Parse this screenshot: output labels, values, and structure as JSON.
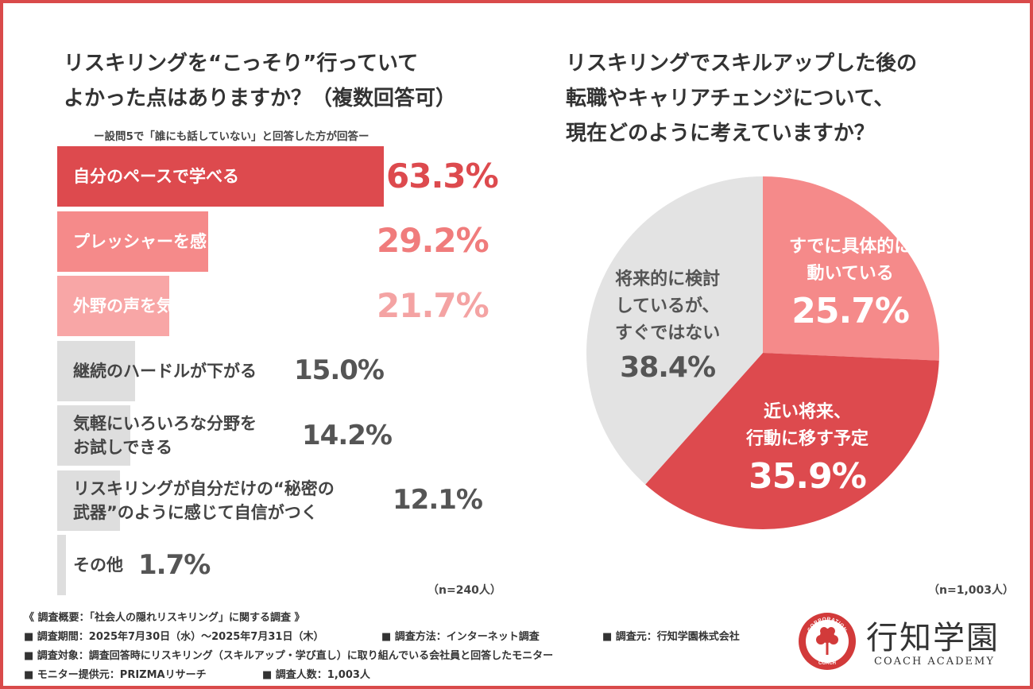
{
  "left_question": {
    "title_line1": "リスキリングを“こっそり”行っていて",
    "title_line2": "よかった点はありますか？（複数回答可）",
    "subtitle": "ー設問5で「誰にも話していない」と回答した方が回答ー",
    "n_note": "（n=240人）"
  },
  "right_question": {
    "title_line1": "リスキリングでスキルアップした後の",
    "title_line2": "転職やキャリアチェンジについて、",
    "title_line3": "現在どのように考えていますか？",
    "n_note": "（n=1,003人）"
  },
  "chart_data": [
    {
      "type": "bar",
      "orientation": "horizontal",
      "title": "リスキリングを“こっそり”行っていてよかった点はありますか？（複数回答可）",
      "categories": [
        "自分のペースで学べる",
        "プレッシャーを感じずに学べる",
        "外野の声を気にせず集中できる",
        "継続のハードルが下がる",
        "気軽にいろいろな分野をお試しできる",
        "リスキリングが自分だけの“秘密の武器”のように感じて自信がつく",
        "その他"
      ],
      "label_lines": [
        [
          "自分のペースで学べる"
        ],
        [
          "プレッシャーを感じずに学べる"
        ],
        [
          "外野の声を気にせず集中できる"
        ],
        [
          "継続のハードルが下がる"
        ],
        [
          "気軽にいろいろな分野を",
          "お試しできる"
        ],
        [
          "リスキリングが自分だけの“秘密の",
          "武器”のように感じて自信がつく"
        ],
        [
          "その他"
        ]
      ],
      "values": [
        63.3,
        29.2,
        21.7,
        15.0,
        14.2,
        12.1,
        1.7
      ],
      "value_labels": [
        "63.3%",
        "29.2%",
        "21.7%",
        "15.0%",
        "14.2%",
        "12.1%",
        "1.7%"
      ],
      "unit": "%",
      "xlim": [
        0,
        100
      ],
      "colors": [
        "#dd4a4e",
        "#f58a8a",
        "#f8a6a6",
        "#dedede",
        "#dedede",
        "#dedede",
        "#dedede"
      ],
      "label_colors": [
        "#ffffff",
        "#ffffff",
        "#ffffff",
        "#444444",
        "#444444",
        "#444444",
        "#444444"
      ],
      "value_colors": [
        "#dd4a4e",
        "#f07c7c",
        "#f4a3a3",
        "#555555",
        "#555555",
        "#555555",
        "#555555"
      ]
    },
    {
      "type": "pie",
      "title": "リスキリングでスキルアップした後の転職やキャリアチェンジについて、現在どのように考えていますか？",
      "slices": [
        {
          "label": "すでに具体的に動いている",
          "label_lines": [
            "すでに具体的に",
            "動いている"
          ],
          "value": 25.7,
          "value_label": "25.7%",
          "color": "#f58a8a",
          "text_color": "#ffffff"
        },
        {
          "label": "近い将来、行動に移す予定",
          "label_lines": [
            "近い将来、",
            "行動に移す予定"
          ],
          "value": 35.9,
          "value_label": "35.9%",
          "color": "#dd4a4e",
          "text_color": "#ffffff"
        },
        {
          "label": "将来的に検討しているが、すぐではない",
          "label_lines": [
            "将来的に検討",
            "しているが、",
            "すぐではない"
          ],
          "value": 38.4,
          "value_label": "38.4%",
          "color": "#e3e3e3",
          "text_color": "#555555"
        }
      ],
      "start": "12 o'clock",
      "direction": "clockwise"
    }
  ],
  "footer": {
    "line1": "《 調査概要：「社会人の隠れリスキリング」に関する調査 》",
    "period": "■ 調査期間：2025年7月30日（水）～2025年7月31日（木）",
    "method": "■ 調査方法：インターネット調査",
    "source": "■ 調査元：行知学園株式会社",
    "target": "■ 調査対象：調査回答時にリスキリング（スキルアップ・学び直し）に取り組んでいる会社員と回答したモニター",
    "monitor": "■ モニター提供元：PRIZMAリサーチ",
    "count": "■ 調査人数：1,003人"
  },
  "logo": {
    "name": "行知学園",
    "sub": "COACH ACADEMY",
    "emblem_text_top": "CORPORATION",
    "emblem_text_bottom": "COACH",
    "color": "#d23a3a"
  }
}
